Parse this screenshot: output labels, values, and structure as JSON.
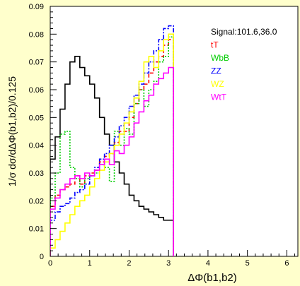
{
  "chart_data": {
    "type": "line",
    "title": "",
    "xlabel": "ΔΦ(b1,b2)",
    "ylabel": "1/σ  dσ/dΔΦ(b1,b2)/0.125",
    "xlim": [
      0,
      6.28
    ],
    "ylim": [
      0,
      0.09
    ],
    "x_ticks": [
      0,
      1,
      2,
      3,
      4,
      5,
      6
    ],
    "y_ticks": [
      0,
      0.01,
      0.02,
      0.03,
      0.04,
      0.05,
      0.06,
      0.07,
      0.08,
      0.09
    ],
    "x_tick_labels": [
      "0",
      "1",
      "2",
      "3",
      "4",
      "5",
      "6"
    ],
    "y_tick_labels": [
      "0",
      "0.01",
      "0.02",
      "0.03",
      "0.04",
      "0.05",
      "0.06",
      "0.07",
      "0.08",
      "0.09"
    ],
    "grid": false,
    "legend_position": "top-right",
    "bin_width": 0.125,
    "series": [
      {
        "name": "Signal:101.6,36.0",
        "color": "#000000",
        "style": "solid",
        "values": [
          0.035,
          0.043,
          0.053,
          0.062,
          0.07,
          0.072,
          0.068,
          0.065,
          0.062,
          0.057,
          0.05,
          0.044,
          0.04,
          0.034,
          0.03,
          0.026,
          0.022,
          0.02,
          0.018,
          0.017,
          0.016,
          0.015,
          0.014,
          0.013,
          0.013
        ]
      },
      {
        "name": "tT",
        "color": "#ff0000",
        "style": "dashed",
        "values": [
          0.018,
          0.022,
          0.024,
          0.025,
          0.026,
          0.029,
          0.026,
          0.029,
          0.03,
          0.031,
          0.034,
          0.036,
          0.037,
          0.041,
          0.045,
          0.045,
          0.05,
          0.055,
          0.06,
          0.062,
          0.066,
          0.07,
          0.072,
          0.076,
          0.078
        ]
      },
      {
        "name": "WbB",
        "color": "#00cc00",
        "style": "dotted",
        "values": [
          0.021,
          0.03,
          0.044,
          0.045,
          0.032,
          0.028,
          0.025,
          0.028,
          0.029,
          0.03,
          0.033,
          0.032,
          0.027,
          0.045,
          0.04,
          0.046,
          0.044,
          0.055,
          0.06,
          0.054,
          0.06,
          0.063,
          0.07,
          0.072,
          0.079
        ]
      },
      {
        "name": "ZZ",
        "color": "#0000ff",
        "style": "dashdot",
        "values": [
          0.013,
          0.016,
          0.018,
          0.019,
          0.021,
          0.023,
          0.024,
          0.026,
          0.029,
          0.032,
          0.035,
          0.037,
          0.04,
          0.043,
          0.047,
          0.05,
          0.054,
          0.058,
          0.062,
          0.066,
          0.07,
          0.074,
          0.078,
          0.082,
          0.083
        ]
      },
      {
        "name": "WZ",
        "color": "#ffff00",
        "style": "solid",
        "values": [
          0.003,
          0.006,
          0.009,
          0.012,
          0.015,
          0.018,
          0.02,
          0.022,
          0.025,
          0.028,
          0.031,
          0.034,
          0.037,
          0.04,
          0.044,
          0.048,
          0.052,
          0.057,
          0.063,
          0.07,
          0.072,
          0.068,
          0.074,
          0.078,
          0.08
        ]
      },
      {
        "name": "WtT",
        "color": "#ff00ff",
        "style": "solid",
        "values": [
          0.017,
          0.021,
          0.024,
          0.026,
          0.028,
          0.029,
          0.028,
          0.03,
          0.029,
          0.031,
          0.033,
          0.035,
          0.033,
          0.038,
          0.037,
          0.04,
          0.043,
          0.048,
          0.052,
          0.056,
          0.058,
          0.062,
          0.064,
          0.066,
          0.068
        ]
      }
    ]
  }
}
